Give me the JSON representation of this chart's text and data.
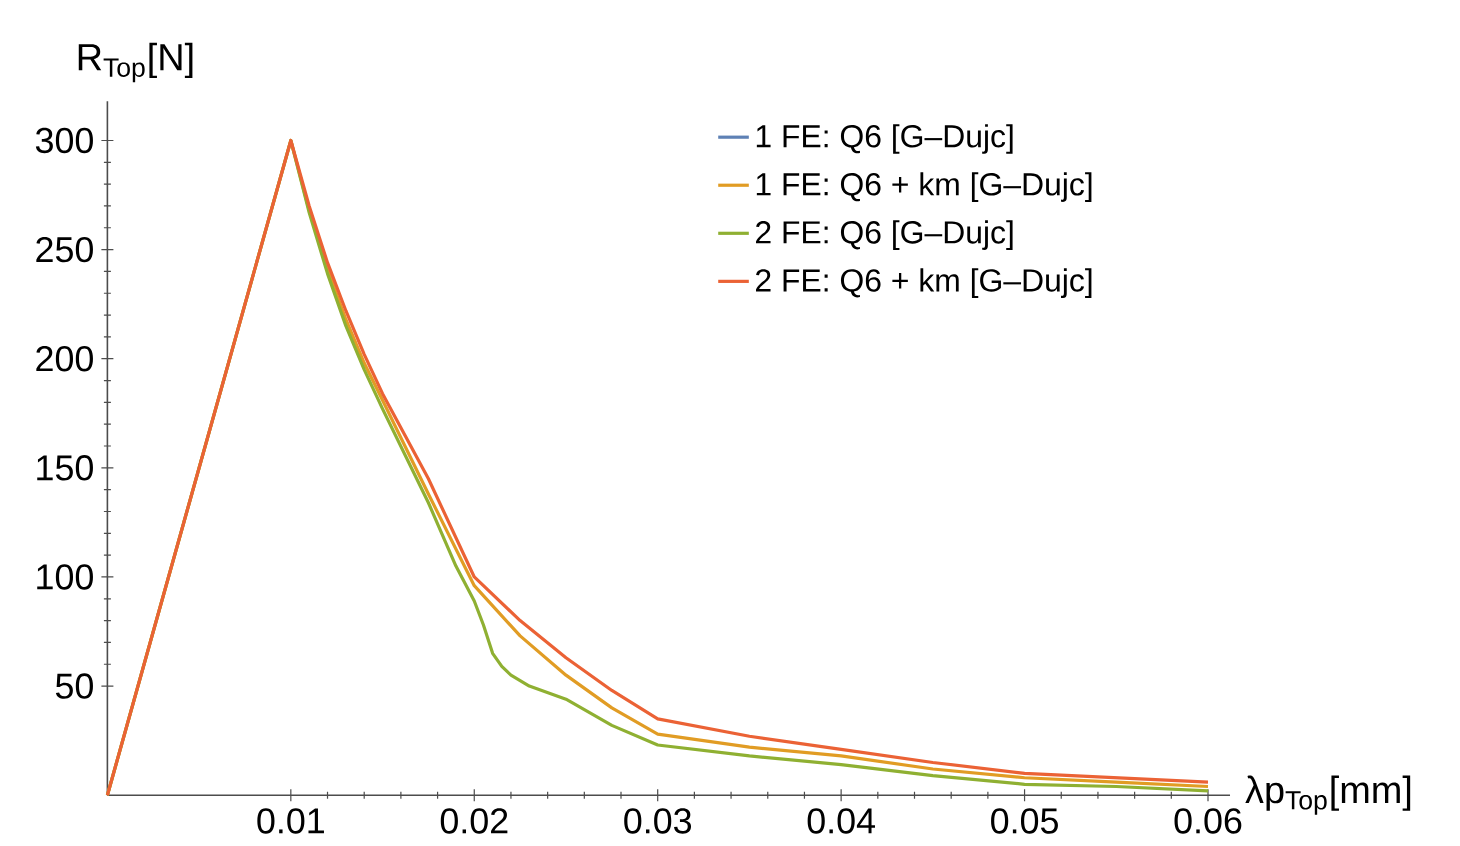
{
  "chart_data": {
    "type": "line",
    "xlabel": "λp$_{Top}$[mm]",
    "ylabel": "R$_{Top}$[N]",
    "xlim": [
      0,
      0.0612
    ],
    "ylim": [
      0,
      318
    ],
    "xticks": [
      0.01,
      0.02,
      0.03,
      0.04,
      0.05,
      0.06
    ],
    "yticks": [
      50,
      100,
      150,
      200,
      250,
      300
    ],
    "grid": false,
    "legend": "top right",
    "series": [
      {
        "name": "1 FE: Q6 [G–Dujc]",
        "color": "#5e81b5"
      },
      {
        "name": "1 FE: Q6 + km [G–Dujc]",
        "color": "#e19c24",
        "x": [
          0,
          0.01,
          0.011,
          0.012,
          0.013,
          0.014,
          0.015,
          0.0175,
          0.02,
          0.0225,
          0.025,
          0.0275,
          0.03,
          0.035,
          0.04,
          0.045,
          0.05,
          0.055,
          0.06
        ],
        "values": [
          0,
          300,
          268,
          241,
          218,
          198,
          181,
          138,
          96,
          73,
          55,
          40,
          28,
          22,
          18,
          12,
          8,
          6,
          4
        ]
      },
      {
        "name": "2 FE: Q6 [G–Dujc]",
        "color": "#8fb032",
        "x": [
          0,
          0.01,
          0.011,
          0.012,
          0.013,
          0.014,
          0.015,
          0.0175,
          0.019,
          0.02,
          0.0205,
          0.021,
          0.0215,
          0.022,
          0.023,
          0.025,
          0.0275,
          0.03,
          0.035,
          0.04,
          0.045,
          0.05,
          0.055,
          0.06
        ],
        "values": [
          0,
          300,
          267,
          239,
          215,
          195,
          177,
          134,
          105,
          89,
          78,
          65,
          59,
          55,
          50,
          44,
          32,
          23,
          18,
          14,
          9,
          5,
          4,
          2
        ]
      },
      {
        "name": "2 FE: Q6 + km [G–Dujc]",
        "color": "#eb6235",
        "x": [
          0,
          0.01,
          0.011,
          0.012,
          0.013,
          0.014,
          0.015,
          0.0175,
          0.02,
          0.0225,
          0.025,
          0.0275,
          0.03,
          0.035,
          0.04,
          0.045,
          0.05,
          0.055,
          0.06
        ],
        "values": [
          0,
          300,
          270,
          244,
          222,
          202,
          184,
          145,
          100,
          80,
          63,
          48,
          35,
          27,
          21,
          15,
          10,
          8,
          6
        ]
      }
    ]
  }
}
